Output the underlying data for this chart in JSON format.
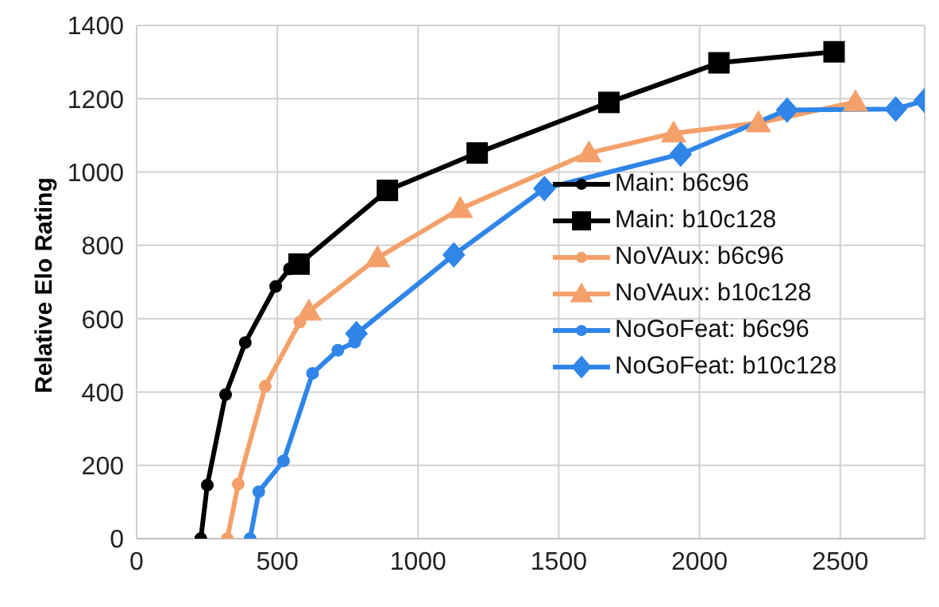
{
  "chart_data": {
    "type": "line",
    "ylabel": "Relative Elo Rating",
    "xlim": [
      0,
      2800
    ],
    "xticks": [
      0,
      500,
      1000,
      1500,
      2000,
      2500
    ],
    "ylim": [
      0,
      1400
    ],
    "yticks": [
      0,
      200,
      400,
      600,
      800,
      1000,
      1200,
      1400
    ],
    "grid": true,
    "legend": "right",
    "line_style": "solid",
    "series": [
      {
        "name": "Main: b6c96",
        "color": "#000000",
        "marker": "circle",
        "x": [
          228,
          251,
          316,
          386,
          494,
          543
        ],
        "values": [
          0,
          146,
          393,
          535,
          688,
          736
        ]
      },
      {
        "name": "Main: b10c128",
        "color": "#000000",
        "marker": "square",
        "x": [
          577,
          891,
          1210,
          1678,
          2069,
          2478
        ],
        "values": [
          749,
          950,
          1052,
          1190,
          1298,
          1328
        ]
      },
      {
        "name": "NoVAux: b6c96",
        "color": "#f4a06a",
        "marker": "circle",
        "x": [
          322,
          361,
          457,
          580
        ],
        "values": [
          0,
          149,
          416,
          591
        ]
      },
      {
        "name": "NoVAux: b10c128",
        "color": "#f4a06a",
        "marker": "triangle",
        "x": [
          612,
          856,
          1150,
          1607,
          1908,
          2209,
          2554
        ],
        "values": [
          620,
          766,
          900,
          1052,
          1106,
          1134,
          1191
        ]
      },
      {
        "name": "NoGoFeat: b6c96",
        "color": "#2f85e8",
        "marker": "circle",
        "x": [
          403,
          434,
          522,
          625,
          715,
          775
        ],
        "values": [
          0,
          128,
          212,
          451,
          514,
          536
        ]
      },
      {
        "name": "NoGoFeat: b10c128",
        "color": "#2f85e8",
        "marker": "diamond",
        "x": [
          781,
          1127,
          1449,
          1933,
          2311,
          2697,
          2800
        ],
        "values": [
          559,
          774,
          955,
          1049,
          1169,
          1172,
          1195
        ]
      }
    ]
  }
}
